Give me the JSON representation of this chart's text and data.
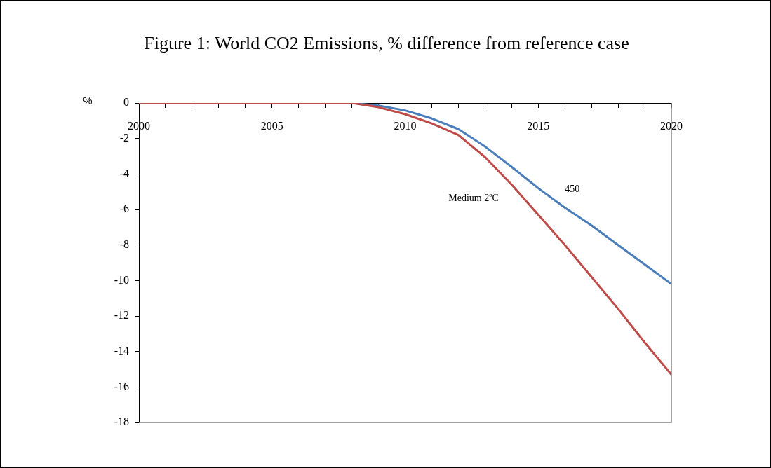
{
  "chart_data": {
    "type": "line",
    "title": "Figure 1: World CO2 Emissions, % difference from reference case",
    "ylabel": "%",
    "x": [
      2000,
      2001,
      2002,
      2003,
      2004,
      2005,
      2006,
      2007,
      2008,
      2009,
      2010,
      2011,
      2012,
      2013,
      2014,
      2015,
      2016,
      2017,
      2018,
      2019,
      2020
    ],
    "series": [
      {
        "name": "450",
        "color": "#4a7ebb",
        "values": [
          null,
          null,
          null,
          null,
          null,
          null,
          null,
          null,
          0,
          -0.15,
          -0.42,
          -0.87,
          -1.47,
          -2.45,
          -3.6,
          -4.8,
          -5.9,
          -6.9,
          -8.0,
          -9.1,
          -10.2
        ]
      },
      {
        "name": "Medium 2ºC",
        "color": "#be4b48",
        "values": [
          0,
          0,
          0,
          0,
          0,
          0,
          0,
          0,
          0,
          -0.24,
          -0.63,
          -1.15,
          -1.8,
          -3.05,
          -4.6,
          -6.3,
          -8.0,
          -9.8,
          -11.6,
          -13.5,
          -15.3
        ]
      }
    ],
    "xlim": [
      2000,
      2020
    ],
    "xticks": [
      2000,
      {
        "value": 2001,
        "label": null
      },
      {
        "value": 2002,
        "label": null
      },
      {
        "value": 2003,
        "label": null
      },
      {
        "value": 2004,
        "label": null
      },
      2005,
      {
        "value": 2006,
        "label": null
      },
      {
        "value": 2007,
        "label": null
      },
      {
        "value": 2008,
        "label": null
      },
      {
        "value": 2009,
        "label": null
      },
      2010,
      {
        "value": 2011,
        "label": null
      },
      {
        "value": 2012,
        "label": null
      },
      {
        "value": 2013,
        "label": null
      },
      {
        "value": 2014,
        "label": null
      },
      2015,
      {
        "value": 2016,
        "label": null
      },
      {
        "value": 2017,
        "label": null
      },
      {
        "value": 2018,
        "label": null
      },
      {
        "value": 2019,
        "label": null
      },
      2020
    ],
    "ylim": [
      -18,
      0
    ],
    "yticks": [
      -18,
      -16,
      -14,
      -12,
      -10,
      -8,
      -6,
      -4,
      -2,
      0
    ],
    "grid": false,
    "legend": false,
    "marker": "none",
    "line_style": "solid"
  }
}
